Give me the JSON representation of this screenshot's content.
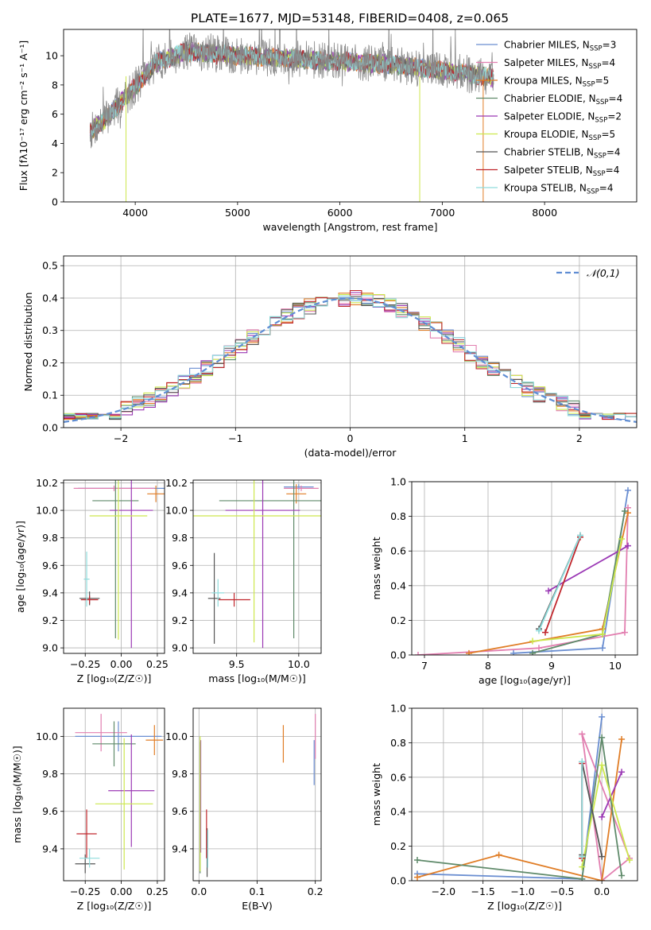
{
  "figure_title": "PLATE=1677, MJD=53148, FIBERID=0408, z=0.065",
  "colors": [
    "#6a8ed1",
    "#e27fb0",
    "#e07d26",
    "#5f8a6a",
    "#9b39b5",
    "#cde84e",
    "#555555",
    "#c0272d",
    "#8fdcdc"
  ],
  "legend": [
    {
      "label": "Chabrier MILES, N",
      "sub": "SSP",
      "suffix": "=3"
    },
    {
      "label": "Salpeter MILES, N",
      "sub": "SSP",
      "suffix": "=4"
    },
    {
      "label": "Kroupa MILES, N",
      "sub": "SSP",
      "suffix": "=5"
    },
    {
      "label": "Chabrier ELODIE, N",
      "sub": "SSP",
      "suffix": "=4"
    },
    {
      "label": "Salpeter ELODIE, N",
      "sub": "SSP",
      "suffix": "=2"
    },
    {
      "label": "Kroupa ELODIE, N",
      "sub": "SSP",
      "suffix": "=5"
    },
    {
      "label": "Chabrier STELIB, N",
      "sub": "SSP",
      "suffix": "=4"
    },
    {
      "label": "Salpeter STELIB, N",
      "sub": "SSP",
      "suffix": "=4"
    },
    {
      "label": "Kroupa STELIB, N",
      "sub": "SSP",
      "suffix": "=4"
    }
  ],
  "chart_data": [
    {
      "id": "spectrum",
      "type": "line",
      "xlabel": "wavelength [Angstrom, rest frame]",
      "ylabel": "Flux [fλ10⁻¹⁷ erg cm⁻² s⁻¹ A⁻¹]",
      "xlim": [
        3300,
        8900
      ],
      "ylim": [
        0,
        11.8
      ],
      "xticks": [
        4000,
        5000,
        6000,
        7000,
        8000
      ],
      "yticks": [
        0,
        2,
        4,
        6,
        8,
        10
      ],
      "data_color": "#888888",
      "continuum": {
        "x": [
          3560,
          3700,
          3950,
          4200,
          4500,
          5000,
          5500,
          6000,
          6500,
          7000,
          7500
        ],
        "y": [
          4.8,
          5.6,
          7.5,
          9.5,
          10.3,
          10.0,
          9.8,
          9.6,
          9.4,
          9.0,
          8.5
        ]
      },
      "x_range": [
        3560,
        7500
      ],
      "absorption_lines": [
        {
          "x": 6780,
          "y": 0.0
        },
        {
          "x": 7400,
          "y": 0.0
        },
        {
          "x": 3910,
          "y": 0.0
        }
      ],
      "grid": false
    },
    {
      "id": "residuals",
      "type": "histogram",
      "xlabel": "(data-model)/error",
      "ylabel": "Normed distribution",
      "xlim": [
        -2.5,
        2.5
      ],
      "ylim": [
        0,
        0.53
      ],
      "xticks": [
        -2,
        -1,
        0,
        1,
        2
      ],
      "yticks": [
        0.0,
        0.1,
        0.2,
        0.3,
        0.4,
        0.5
      ],
      "bin_width": 0.1,
      "reference_curve": {
        "label": "𝒩(0,1)",
        "color": "#5f8dd3",
        "mean": 0,
        "sigma": 1
      },
      "grid": true
    },
    {
      "id": "age_vs_Z",
      "type": "errorbar",
      "xlabel": "Z [log₁₀(Z/Z☉)]",
      "ylabel": "age  [log₁₀(age/yr)]",
      "xlim": [
        -0.4,
        0.3
      ],
      "ylim": [
        8.96,
        10.22
      ],
      "xticks": [
        -0.25,
        0.0,
        0.25
      ],
      "xticklabels": [
        "−0.25",
        "0.00",
        "0.25"
      ],
      "yticks": [
        9.0,
        9.2,
        9.4,
        9.6,
        9.8,
        10.0,
        10.2
      ],
      "points": [
        {
          "x": 0.0,
          "xerr": 0.3,
          "y": 10.16,
          "yerr": 0.0
        },
        {
          "x": -0.05,
          "xerr": 0.28,
          "y": 10.16,
          "yerr": 0.02
        },
        {
          "x": 0.24,
          "xerr": 0.06,
          "y": 10.12,
          "yerr": 0.06
        },
        {
          "x": -0.04,
          "xerr": 0.16,
          "y": 10.07,
          "yerr": 1.0
        },
        {
          "x": 0.07,
          "xerr": 0.15,
          "y": 10.0,
          "yerr": 1.0
        },
        {
          "x": -0.02,
          "xerr": 0.2,
          "y": 9.96,
          "yerr": 0.9
        },
        {
          "x": -0.22,
          "xerr": 0.07,
          "y": 9.36,
          "yerr": 0.05
        },
        {
          "x": -0.22,
          "xerr": 0.06,
          "y": 9.35,
          "yerr": 0.03
        },
        {
          "x": -0.24,
          "xerr": 0.02,
          "y": 9.5,
          "yerr": 0.2
        }
      ],
      "grid": true
    },
    {
      "id": "age_vs_mass",
      "type": "errorbar",
      "xlabel": "mass [log₁₀(M/M☉)]",
      "ylabel": "",
      "xlim": [
        9.15,
        10.18
      ],
      "ylim": [
        8.96,
        10.22
      ],
      "xticks": [
        9.5,
        10.0
      ],
      "yticks": [
        9.0,
        9.2,
        9.4,
        9.6,
        9.8,
        10.0,
        10.2
      ],
      "points": [
        {
          "x": 10.0,
          "xerr": 0.12,
          "y": 10.17,
          "yerr": 0.02
        },
        {
          "x": 10.02,
          "xerr": 0.14,
          "y": 10.16,
          "yerr": 0.02
        },
        {
          "x": 9.98,
          "xerr": 0.08,
          "y": 10.12,
          "yerr": 0.07
        },
        {
          "x": 9.96,
          "xerr": 0.6,
          "y": 10.07,
          "yerr": 1.0
        },
        {
          "x": 9.71,
          "xerr": 0.3,
          "y": 10.0,
          "yerr": 1.0
        },
        {
          "x": 9.64,
          "xerr": 0.7,
          "y": 9.96,
          "yerr": 0.92
        },
        {
          "x": 9.32,
          "xerr": 0.05,
          "y": 9.36,
          "yerr": 0.33
        },
        {
          "x": 9.48,
          "xerr": 0.13,
          "y": 9.35,
          "yerr": 0.05
        },
        {
          "x": 9.35,
          "xerr": 0.05,
          "y": 9.4,
          "yerr": 0.1
        }
      ],
      "grid": true
    },
    {
      "id": "weight_vs_age",
      "type": "line",
      "xlabel": "age  [log₁₀(age/yr)]",
      "ylabel": "mass weight",
      "xlim": [
        6.8,
        10.35
      ],
      "ylim": [
        0,
        1.0
      ],
      "xticks": [
        7,
        8,
        9,
        10
      ],
      "yticks": [
        0.0,
        0.2,
        0.4,
        0.6,
        0.8,
        1.0
      ],
      "series": [
        {
          "x": [
            8.4,
            9.8,
            10.2
          ],
          "y": [
            0.01,
            0.04,
            0.95
          ]
        },
        {
          "x": [
            6.9,
            8.8,
            10.15,
            10.2
          ],
          "y": [
            0.0,
            0.04,
            0.13,
            0.85
          ]
        },
        {
          "x": [
            7.7,
            9.8,
            10.2
          ],
          "y": [
            0.01,
            0.15,
            0.82
          ]
        },
        {
          "x": [
            8.7,
            9.8,
            10.15
          ],
          "y": [
            0.01,
            0.12,
            0.83
          ]
        },
        {
          "x": [
            8.95,
            10.2
          ],
          "y": [
            0.37,
            0.63
          ]
        },
        {
          "x": [
            8.7,
            9.8,
            10.1
          ],
          "y": [
            0.08,
            0.12,
            0.67
          ]
        },
        {
          "x": [
            8.8,
            9.45
          ],
          "y": [
            0.15,
            0.69
          ]
        },
        {
          "x": [
            8.9,
            9.45
          ],
          "y": [
            0.13,
            0.68
          ]
        },
        {
          "x": [
            8.8,
            9.45
          ],
          "y": [
            0.14,
            0.69
          ]
        }
      ],
      "grid": true
    },
    {
      "id": "mass_vs_Z",
      "type": "errorbar",
      "xlabel": "Z [log₁₀(Z/Z☉)]",
      "ylabel": "mass [log₁₀(M/M☉)]",
      "xlim": [
        -0.4,
        0.3
      ],
      "ylim": [
        9.23,
        10.15
      ],
      "xticks": [
        -0.25,
        0.0,
        0.25
      ],
      "xticklabels": [
        "−0.25",
        "0.00",
        "0.25"
      ],
      "yticks": [
        9.4,
        9.6,
        9.8,
        10.0
      ],
      "points": [
        {
          "x": -0.02,
          "xerr": 0.3,
          "y": 10.0,
          "yerr": 0.08
        },
        {
          "x": -0.14,
          "xerr": 0.18,
          "y": 10.02,
          "yerr": 0.1
        },
        {
          "x": 0.23,
          "xerr": 0.06,
          "y": 9.98,
          "yerr": 0.08
        },
        {
          "x": -0.05,
          "xerr": 0.15,
          "y": 9.96,
          "yerr": 0.12
        },
        {
          "x": 0.07,
          "xerr": 0.16,
          "y": 9.71,
          "yerr": 0.3
        },
        {
          "x": 0.02,
          "xerr": 0.2,
          "y": 9.64,
          "yerr": 0.35
        },
        {
          "x": -0.25,
          "xerr": 0.07,
          "y": 9.32,
          "yerr": 0.05
        },
        {
          "x": -0.24,
          "xerr": 0.07,
          "y": 9.48,
          "yerr": 0.13
        },
        {
          "x": -0.22,
          "xerr": 0.07,
          "y": 9.35,
          "yerr": 0.05
        }
      ],
      "grid": true
    },
    {
      "id": "mass_vs_EBV",
      "type": "errorbar",
      "xlabel": "E(B-V)",
      "ylabel": "",
      "xlim": [
        -0.01,
        0.21
      ],
      "ylim": [
        9.23,
        10.15
      ],
      "xticks": [
        0.0,
        0.1,
        0.2
      ],
      "yticks": [
        9.4,
        9.6,
        9.8,
        10.0
      ],
      "points": [
        {
          "x": 0.198,
          "xerr": 0.0,
          "y": 9.86,
          "yerr": 0.12
        },
        {
          "x": 0.2,
          "xerr": 0.0,
          "y": 10.0,
          "yerr": 0.12
        },
        {
          "x": 0.145,
          "xerr": 0.0,
          "y": 9.96,
          "yerr": 0.1
        },
        {
          "x": 0.002,
          "xerr": 0.0,
          "y": 9.62,
          "yerr": 0.35
        },
        {
          "x": 0.003,
          "xerr": 0.0,
          "y": 9.68,
          "yerr": 0.3
        },
        {
          "x": 0.002,
          "xerr": 0.0,
          "y": 9.64,
          "yerr": 0.36
        },
        {
          "x": 0.014,
          "xerr": 0.0,
          "y": 9.38,
          "yerr": 0.13
        },
        {
          "x": 0.013,
          "xerr": 0.0,
          "y": 9.48,
          "yerr": 0.13
        },
        {
          "x": 0.015,
          "xerr": 0.0,
          "y": 9.4,
          "yerr": 0.1
        }
      ],
      "grid": true
    },
    {
      "id": "weight_vs_Z",
      "type": "line",
      "xlabel": "Z [log₁₀(Z/Z☉)]",
      "ylabel": "mass weight",
      "xlim": [
        -2.4,
        0.45
      ],
      "ylim": [
        0,
        1.0
      ],
      "xticks": [
        -2.0,
        -1.5,
        -1.0,
        -0.5,
        0.0
      ],
      "xticklabels": [
        "−2.0",
        "−1.5",
        "−1.0",
        "−0.5",
        "0.0"
      ],
      "yticks": [
        0.0,
        0.2,
        0.4,
        0.6,
        0.8,
        1.0
      ],
      "series": [
        {
          "x": [
            -2.33,
            -0.25,
            0.0
          ],
          "y": [
            0.04,
            0.01,
            0.95
          ]
        },
        {
          "x": [
            -0.25,
            0.0,
            0.35,
            -0.25
          ],
          "y": [
            0.85,
            0.0,
            0.13,
            0.85
          ]
        },
        {
          "x": [
            -2.33,
            -1.3,
            0.0,
            0.25
          ],
          "y": [
            0.02,
            0.15,
            0.0,
            0.82
          ]
        },
        {
          "x": [
            -2.33,
            -0.25,
            0.0,
            0.25
          ],
          "y": [
            0.12,
            0.01,
            0.83,
            0.03
          ]
        },
        {
          "x": [
            0.0,
            0.25
          ],
          "y": [
            0.37,
            0.63
          ]
        },
        {
          "x": [
            -0.25,
            0.0,
            0.35
          ],
          "y": [
            0.08,
            0.67,
            0.12
          ]
        },
        {
          "x": [
            -0.25,
            -0.25,
            0.0
          ],
          "y": [
            0.15,
            0.69,
            0.14
          ]
        },
        {
          "x": [
            -0.25,
            -0.25
          ],
          "y": [
            0.13,
            0.68
          ]
        },
        {
          "x": [
            -0.25,
            -0.25
          ],
          "y": [
            0.14,
            0.69
          ]
        }
      ],
      "grid": true
    }
  ]
}
